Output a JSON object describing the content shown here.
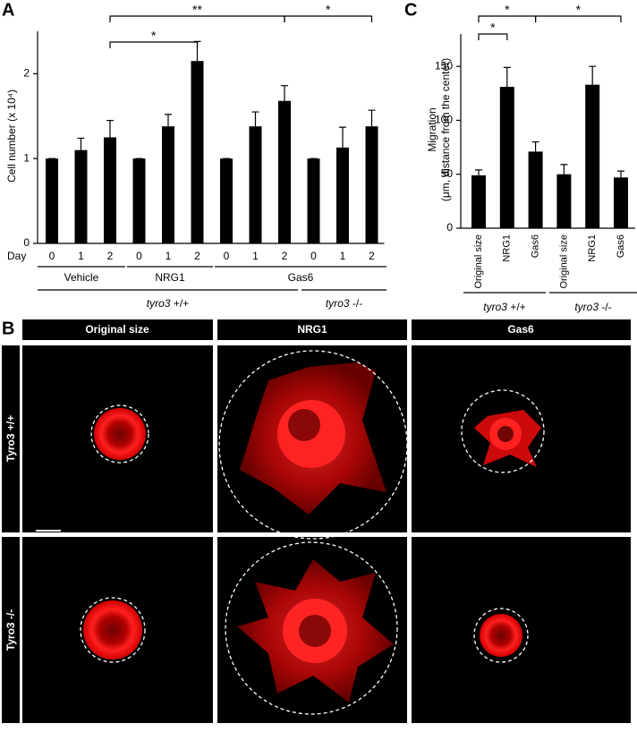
{
  "panel_labels": [
    "A",
    "B",
    "C"
  ],
  "chart_data": [
    {
      "type": "bar",
      "ylabel": "Cell number (x 10⁴)",
      "x_label": "Day",
      "categories": [
        "0",
        "1",
        "2",
        "0",
        "1",
        "2",
        "0",
        "1",
        "2",
        "0",
        "1",
        "2"
      ],
      "values": [
        1,
        1.1,
        1.25,
        1,
        1.38,
        2.15,
        1,
        1.38,
        1.68,
        1,
        1.13,
        1.38
      ],
      "errors": [
        0,
        0.14,
        0.2,
        0,
        0.14,
        0.23,
        0,
        0.17,
        0.18,
        0,
        0.24,
        0.19
      ],
      "color": "#000000",
      "ylim": [
        0,
        2.5
      ],
      "yticks": [
        0,
        1,
        2
      ],
      "groups": [
        "Vehicle",
        "NRG1",
        "Gas6"
      ],
      "genotypes": [
        {
          "name": "tyro3",
          "genotype": "+/+"
        },
        {
          "name": "tyro3",
          "genotype": "-/-"
        }
      ],
      "annotations": [
        "*",
        "**",
        "*"
      ]
    },
    {
      "type": "bar",
      "ylabel": [
        "Migration",
        "(μm, distance from the center)"
      ],
      "categories": [
        "Original size",
        "NRG1",
        "Gas6",
        "Original size",
        "NRG1",
        "Gas6"
      ],
      "values": [
        49,
        131,
        71,
        50,
        133,
        47
      ],
      "errors": [
        5,
        18,
        9,
        9,
        17,
        6
      ],
      "color": "#000000",
      "ylim": [
        0,
        180
      ],
      "yticks": [
        0,
        50,
        100,
        150
      ],
      "genotypes": [
        {
          "name": "tyro3",
          "genotype": "+/+"
        },
        {
          "name": "tyro3",
          "genotype": "-/-"
        }
      ],
      "annotations": [
        "*",
        "*",
        "*"
      ]
    }
  ],
  "panel_b": {
    "columns": [
      "Original size",
      "NRG1",
      "Gas6"
    ],
    "rows": [
      "Tyro3 +/+",
      "Tyro3 -/-"
    ]
  }
}
